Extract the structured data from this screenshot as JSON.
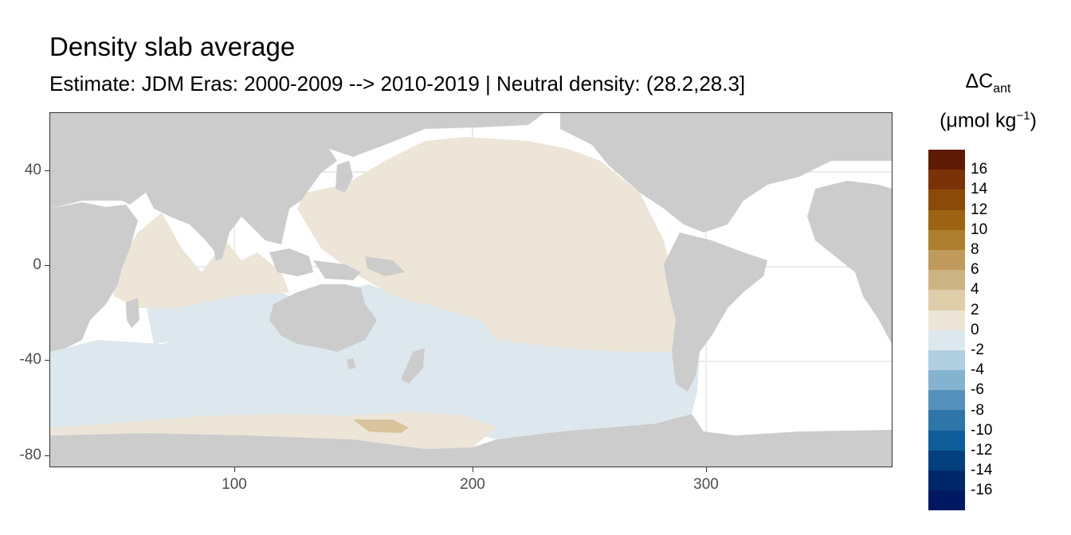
{
  "title": "Density slab average",
  "subtitle": "Estimate: JDM Eras: 2000-2009 --> 2010-2019 | Neutral density: (28.2,28.3]",
  "map": {
    "x_ticks": [
      "100",
      "200",
      "300"
    ],
    "y_ticks": [
      "40",
      "0",
      "-40",
      "-80"
    ],
    "xlim": [
      20,
      380
    ],
    "ylim": [
      -85,
      65
    ],
    "colors": {
      "land": "#cccccc",
      "no_data": "#ffffff",
      "neutral_warm": "#ece5d8",
      "neutral_cool": "#dde8ee",
      "warm_deep": "#d9c39c",
      "gridline": "#ebebeb"
    },
    "regions": [
      {
        "name": "pacific",
        "value_bin": "0 to 2"
      },
      {
        "name": "indian",
        "value_bin": "0 to 2"
      },
      {
        "name": "southern",
        "value_bin": "-2 to 0"
      },
      {
        "name": "antarctic-shelf",
        "value_bin": "2 to 4"
      }
    ]
  },
  "legend": {
    "title_line1": "ΔC",
    "title_sub": "ant",
    "title_line2_pre": "(μmol kg",
    "title_sup": "−1",
    "title_line2_post": ")",
    "colors": [
      "#5f1a05",
      "#7a3207",
      "#8b4a0a",
      "#9d6413",
      "#ad7f2e",
      "#bf9a5c",
      "#cdb484",
      "#dfcca8",
      "#ece5d8",
      "#dde8ee",
      "#b0cfe0",
      "#84b3cf",
      "#5591ba",
      "#2f76a8",
      "#105e99",
      "#043f7e",
      "#002869",
      "#001862"
    ],
    "labels": [
      "16",
      "14",
      "12",
      "10",
      "8",
      "6",
      "4",
      "2",
      "0",
      "-2",
      "-4",
      "-6",
      "-8",
      "-10",
      "-12",
      "-14",
      "-16"
    ]
  }
}
